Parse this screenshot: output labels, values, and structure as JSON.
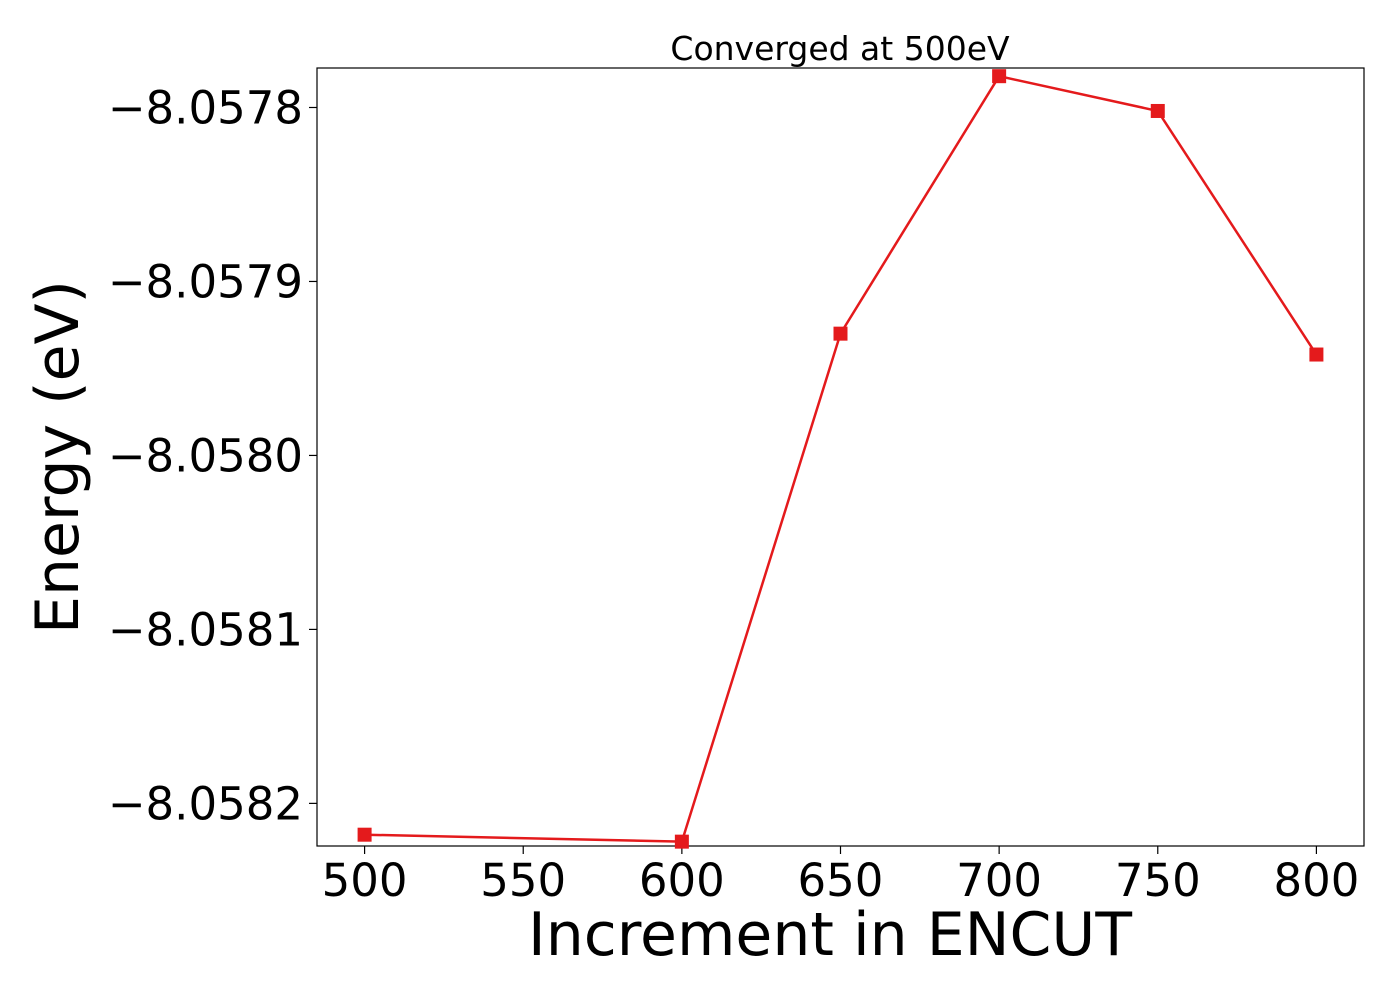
{
  "chart_data": {
    "type": "line",
    "title": "Converged at 500eV",
    "xlabel": "Increment in ENCUT",
    "ylabel": "Energy (eV)",
    "x": [
      500,
      600,
      650,
      700,
      750,
      800
    ],
    "series": [
      {
        "values": [
          -8.058218,
          -8.058222,
          -8.05793,
          -8.057782,
          -8.057802,
          -8.057942
        ],
        "color": "#e41a1c",
        "marker": "square"
      }
    ],
    "xlim": [
      485,
      815
    ],
    "ylim": [
      -8.0582245,
      -8.0577773
    ],
    "x_ticks": [
      500,
      550,
      600,
      650,
      700,
      750,
      800
    ],
    "x_tick_labels": [
      "500",
      "550",
      "600",
      "650",
      "700",
      "750",
      "800"
    ],
    "y_ticks": [
      -8.0582,
      -8.0581,
      -8.058,
      -8.0579,
      -8.0578
    ],
    "y_tick_labels": [
      "−8.0582",
      "−8.0581",
      "−8.0580",
      "−8.0579",
      "−8.0578"
    ],
    "grid": false,
    "legend": "none"
  }
}
